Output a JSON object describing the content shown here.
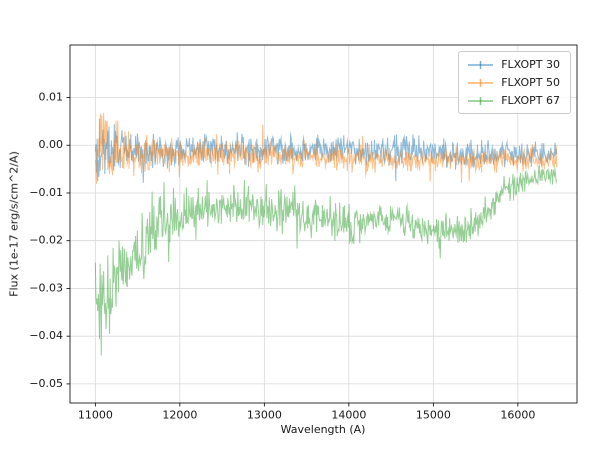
{
  "figure": {
    "background": "#ffffff"
  },
  "chart_data": {
    "type": "line",
    "title": "",
    "xlabel": "Wavelength (A)",
    "ylabel": "Flux (1e-17 erg/s/cm^2/A)",
    "xlim": [
      10700,
      16700
    ],
    "ylim": [
      -0.054,
      0.021
    ],
    "xticks": [
      11000,
      12000,
      13000,
      14000,
      15000,
      16000
    ],
    "yticks": [
      -0.05,
      -0.04,
      -0.03,
      -0.02,
      -0.01,
      0.0,
      0.01
    ],
    "grid": true,
    "grid_color": "#d9d9d9",
    "spine_color": "#000000",
    "tick_label_color": "#1a1a1a",
    "legend_position": "upper right",
    "x_start": 11000,
    "x_end": 16460,
    "x_step": 7,
    "clamp": [
      -0.0512,
      0.0176
    ],
    "series": [
      {
        "name": "FLXOPT 30",
        "color": "#1f77b4",
        "alpha": 0.5,
        "seed": 101,
        "envelope": [
          [
            11000,
            -0.001,
            0.008
          ],
          [
            11060,
            0.001,
            0.015
          ],
          [
            11160,
            -0.001,
            0.009
          ],
          [
            11400,
            -0.001,
            0.006
          ],
          [
            12000,
            -0.001,
            0.005
          ],
          [
            13000,
            -0.001,
            0.0045
          ],
          [
            14000,
            -0.001,
            0.0045
          ],
          [
            15000,
            -0.0015,
            0.004
          ],
          [
            16000,
            -0.002,
            0.004
          ],
          [
            16460,
            -0.002,
            0.0035
          ]
        ]
      },
      {
        "name": "FLXOPT 50",
        "color": "#ff7f0e",
        "alpha": 0.5,
        "seed": 202,
        "envelope": [
          [
            11000,
            -0.002,
            0.009
          ],
          [
            11060,
            0.0,
            0.016
          ],
          [
            11160,
            -0.002,
            0.009
          ],
          [
            11400,
            -0.002,
            0.006
          ],
          [
            12000,
            -0.002,
            0.005
          ],
          [
            13000,
            -0.002,
            0.0045
          ],
          [
            14000,
            -0.0025,
            0.004
          ],
          [
            15000,
            -0.003,
            0.0035
          ],
          [
            16000,
            -0.003,
            0.003
          ],
          [
            16460,
            -0.003,
            0.003
          ]
        ]
      },
      {
        "name": "FLXOPT 67",
        "color": "#2ca02c",
        "alpha": 0.5,
        "seed": 303,
        "envelope": [
          [
            11000,
            -0.03,
            0.014
          ],
          [
            11100,
            -0.035,
            0.014
          ],
          [
            11250,
            -0.028,
            0.011
          ],
          [
            11500,
            -0.022,
            0.009
          ],
          [
            11800,
            -0.017,
            0.008
          ],
          [
            12100,
            -0.014,
            0.008
          ],
          [
            12500,
            -0.013,
            0.006
          ],
          [
            13000,
            -0.013,
            0.006
          ],
          [
            13500,
            -0.014,
            0.006
          ],
          [
            14000,
            -0.017,
            0.006
          ],
          [
            14300,
            -0.015,
            0.005
          ],
          [
            14700,
            -0.016,
            0.005
          ],
          [
            15000,
            -0.018,
            0.0045
          ],
          [
            15400,
            -0.018,
            0.005
          ],
          [
            15700,
            -0.013,
            0.004
          ],
          [
            15900,
            -0.009,
            0.0035
          ],
          [
            16200,
            -0.007,
            0.0035
          ],
          [
            16460,
            -0.006,
            0.003
          ]
        ]
      }
    ]
  }
}
